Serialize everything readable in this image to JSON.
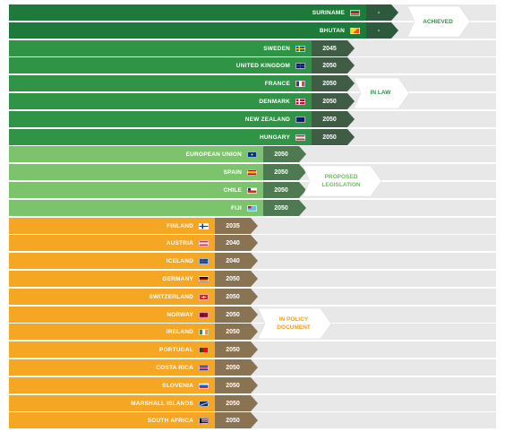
{
  "colors": {
    "achieved_bar": "#1e7a3a",
    "achieved_year": "#2d5a3d",
    "law_bar": "#2f9445",
    "law_year": "#3f5c45",
    "legislation_bar": "#7cc46c",
    "legislation_year": "#4e7a52",
    "policy_bar": "#f5a623",
    "policy_year": "#8a7352",
    "row_bg": "#e8e8e8",
    "green_text": "#2f9445",
    "light_green_text": "#6cbf5a",
    "orange_text": "#f0a020"
  },
  "groups": [
    {
      "key": "achieved",
      "label": "ACHIEVED",
      "countries": [
        {
          "name": "SURINAME",
          "year": "-",
          "flag": "suriname"
        },
        {
          "name": "BHUTAN",
          "year": "-",
          "flag": "bhutan"
        }
      ]
    },
    {
      "key": "law",
      "label": "IN LAW",
      "countries": [
        {
          "name": "SWEDEN",
          "year": "2045",
          "flag": "sweden"
        },
        {
          "name": "UNITED KINGDOM",
          "year": "2050",
          "flag": "uk"
        },
        {
          "name": "FRANCE",
          "year": "2050",
          "flag": "france"
        },
        {
          "name": "DENMARK",
          "year": "2050",
          "flag": "denmark"
        },
        {
          "name": "NEW ZEALAND",
          "year": "2050",
          "flag": "nz"
        },
        {
          "name": "HUNGARY",
          "year": "2050",
          "flag": "hungary"
        }
      ]
    },
    {
      "key": "legislation",
      "label": "PROPOSED\nLEGISLATION",
      "countries": [
        {
          "name": "EUROPEAN UNION",
          "year": "2050",
          "flag": "eu"
        },
        {
          "name": "SPAIN",
          "year": "2050",
          "flag": "spain"
        },
        {
          "name": "CHILE",
          "year": "2050",
          "flag": "chile"
        },
        {
          "name": "FIJI",
          "year": "2050",
          "flag": "fiji"
        }
      ]
    },
    {
      "key": "policy",
      "label": "IN POLICY\nDOCUMENT",
      "countries": [
        {
          "name": "FINLAND",
          "year": "2035",
          "flag": "finland"
        },
        {
          "name": "AUSTRIA",
          "year": "2040",
          "flag": "austria"
        },
        {
          "name": "ICELAND",
          "year": "2040",
          "flag": "iceland"
        },
        {
          "name": "GERMANY",
          "year": "2050",
          "flag": "germany"
        },
        {
          "name": "SWITZERLAND",
          "year": "2050",
          "flag": "switzerland"
        },
        {
          "name": "NORWAY",
          "year": "2050",
          "flag": "norway"
        },
        {
          "name": "IRELAND",
          "year": "2050",
          "flag": "ireland"
        },
        {
          "name": "PORTUGAL",
          "year": "2050",
          "flag": "portugal"
        },
        {
          "name": "COSTA RICA",
          "year": "2050",
          "flag": "costarica"
        },
        {
          "name": "SLOVENIA",
          "year": "2050",
          "flag": "slovenia"
        },
        {
          "name": "MARSHALL ISLANDS",
          "year": "2050",
          "flag": "marshall"
        },
        {
          "name": "SOUTH AFRICA",
          "year": "2050",
          "flag": "southafrica"
        }
      ]
    }
  ]
}
